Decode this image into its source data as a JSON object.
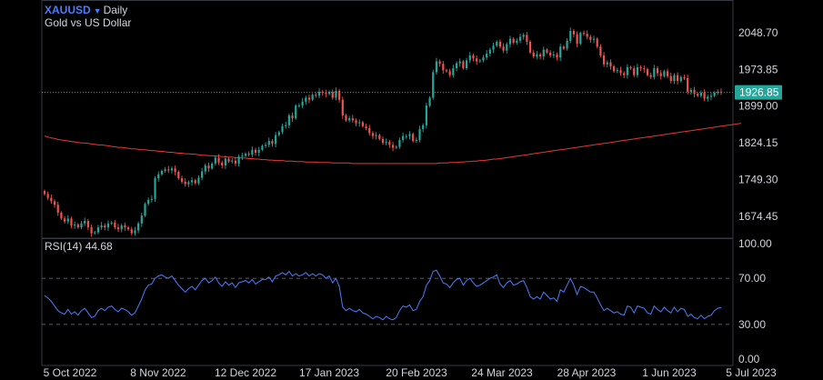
{
  "header": {
    "symbol": "XAUUSD",
    "interval": "Daily",
    "description": "Gold vs US Dollar"
  },
  "price_axis": {
    "labels": [
      "2048.70",
      "1973.85",
      "1899.00",
      "1824.15",
      "1749.30",
      "1674.45"
    ],
    "last_price": "1926.85"
  },
  "rsi_panel": {
    "label": "RSI(14)",
    "value": "44.68",
    "axis_labels": [
      "100.00",
      "70.00",
      "30.00",
      "0.00"
    ]
  },
  "time_axis": {
    "labels": [
      "5 Oct 2022",
      "8 Nov 2022",
      "12 Dec 2022",
      "17 Jan 2023",
      "20 Feb 2023",
      "24 Mar 2023",
      "28 Apr 2023",
      "1 Jun 2023",
      "5 Jul 2023"
    ]
  },
  "colors": {
    "up": "#26a69a",
    "down": "#ef5350",
    "ma": "#e53935",
    "rsi": "#4c7dff",
    "last_line": "#26a69a",
    "grid": "#2a2e39"
  },
  "chart_data": [
    {
      "type": "candlestick",
      "title": "XAUUSD Daily",
      "y_axis_ticks": [
        2048.7,
        1973.85,
        1899.0,
        1824.15,
        1749.3,
        1674.45
      ],
      "ylim": [
        1630,
        2115
      ],
      "x_tick_labels": [
        "5 Oct 2022",
        "8 Nov 2022",
        "12 Dec 2022",
        "17 Jan 2023",
        "20 Feb 2023",
        "24 Mar 2023",
        "28 Apr 2023",
        "1 Jun 2023",
        "5 Jul 2023"
      ],
      "last_price": 1926.85,
      "closes": [
        1720,
        1712,
        1705,
        1698,
        1682,
        1670,
        1664,
        1670,
        1656,
        1658,
        1652,
        1660,
        1665,
        1652,
        1640,
        1642,
        1652,
        1656,
        1652,
        1660,
        1662,
        1652,
        1648,
        1656,
        1652,
        1648,
        1640,
        1646,
        1660,
        1676,
        1700,
        1708,
        1710,
        1752,
        1760,
        1767,
        1770,
        1768,
        1772,
        1765,
        1752,
        1745,
        1740,
        1744,
        1748,
        1742,
        1753,
        1766,
        1778,
        1772,
        1782,
        1794,
        1784,
        1778,
        1792,
        1786,
        1788,
        1782,
        1796,
        1798,
        1802,
        1800,
        1810,
        1804,
        1810,
        1818,
        1820,
        1828,
        1822,
        1840,
        1846,
        1858,
        1860,
        1880,
        1874,
        1900,
        1900,
        1908,
        1916,
        1912,
        1922,
        1920,
        1928,
        1926,
        1924,
        1928,
        1916,
        1930,
        1912,
        1880,
        1870,
        1874,
        1870,
        1864,
        1866,
        1858,
        1854,
        1844,
        1838,
        1840,
        1832,
        1824,
        1826,
        1820,
        1814,
        1816,
        1830,
        1838,
        1838,
        1842,
        1828,
        1830,
        1852,
        1860,
        1900,
        1916,
        1968,
        1990,
        1985,
        1972,
        1970,
        1962,
        1976,
        1986,
        1990,
        1976,
        1992,
        2002,
        1996,
        1990,
        1992,
        1998,
        2006,
        2014,
        2022,
        2030,
        2020,
        2012,
        2025,
        2036,
        2028,
        2032,
        2040,
        2044,
        2030,
        2008,
        2000,
        2004,
        2000,
        2014,
        2008,
        2002,
        2004,
        1998,
        2020,
        2016,
        2032,
        2052,
        2045,
        2026,
        2048,
        2046,
        2040,
        2034,
        2036,
        2020,
        2002,
        1984,
        1988,
        1980,
        1970,
        1972,
        1966,
        1962,
        1978,
        1976,
        1962,
        1978,
        1976,
        1974,
        1962,
        1958,
        1976,
        1966,
        1960,
        1970,
        1960,
        1950,
        1962,
        1950,
        1958,
        1956,
        1928,
        1932,
        1924,
        1920,
        1926,
        1914,
        1918,
        1920,
        1926,
        1928,
        1926.85
      ],
      "ma_200": [
        1838,
        1836,
        1834,
        1833,
        1831,
        1830,
        1829,
        1828,
        1827,
        1826,
        1825,
        1824,
        1824,
        1823,
        1822,
        1821,
        1820,
        1820,
        1819,
        1818,
        1817,
        1816,
        1815,
        1815,
        1814,
        1813,
        1812,
        1812,
        1811,
        1810,
        1810,
        1809,
        1808,
        1808,
        1807,
        1807,
        1806,
        1805,
        1805,
        1804,
        1803,
        1803,
        1802,
        1802,
        1801,
        1801,
        1800,
        1799,
        1799,
        1798,
        1798,
        1797,
        1797,
        1796,
        1796,
        1795,
        1795,
        1794,
        1794,
        1793,
        1793,
        1792,
        1792,
        1791,
        1791,
        1790,
        1790,
        1789,
        1789,
        1788,
        1788,
        1788,
        1787,
        1787,
        1787,
        1786,
        1786,
        1786,
        1785,
        1785,
        1785,
        1785,
        1784,
        1784,
        1784,
        1784,
        1783,
        1783,
        1783,
        1783,
        1783,
        1783,
        1782,
        1782,
        1782,
        1782,
        1782,
        1782,
        1782,
        1782,
        1782,
        1782,
        1782,
        1782,
        1782,
        1782,
        1782,
        1782,
        1782,
        1782,
        1782,
        1782,
        1782,
        1782,
        1782,
        1782,
        1782,
        1782,
        1783,
        1783,
        1783,
        1784,
        1784,
        1784,
        1785,
        1785,
        1786,
        1786,
        1787,
        1787,
        1788,
        1788,
        1789,
        1790,
        1791,
        1791,
        1792,
        1793,
        1794,
        1795,
        1796,
        1797,
        1798,
        1799,
        1800,
        1801,
        1802,
        1803,
        1804,
        1805,
        1806,
        1807,
        1808,
        1809,
        1810,
        1811,
        1812,
        1813,
        1814,
        1815,
        1816,
        1817,
        1818,
        1819,
        1820,
        1821,
        1822,
        1823,
        1824,
        1825,
        1826,
        1827,
        1828,
        1829,
        1830,
        1831,
        1832,
        1833,
        1834,
        1835,
        1836,
        1837,
        1838,
        1839,
        1840,
        1841,
        1842,
        1843,
        1844,
        1845,
        1846,
        1847,
        1848,
        1849,
        1850,
        1851,
        1852,
        1853,
        1854,
        1855,
        1856,
        1857,
        1858,
        1859,
        1860,
        1861,
        1862,
        1863,
        1864
      ],
      "ma_label": "",
      "rsi_14": [
        55,
        53,
        50,
        46,
        42,
        40,
        39,
        43,
        39,
        41,
        38,
        42,
        44,
        40,
        36,
        37,
        42,
        44,
        42,
        45,
        46,
        43,
        41,
        44,
        43,
        41,
        38,
        40,
        46,
        52,
        60,
        64,
        65,
        70,
        72,
        73,
        71,
        70,
        72,
        68,
        64,
        61,
        58,
        61,
        63,
        60,
        64,
        68,
        70,
        66,
        68,
        71,
        66,
        63,
        67,
        64,
        66,
        62,
        66,
        67,
        68,
        66,
        69,
        65,
        67,
        69,
        69,
        71,
        67,
        72,
        73,
        75,
        73,
        76,
        72,
        74,
        72,
        73,
        75,
        72,
        74,
        72,
        74,
        73,
        70,
        72,
        66,
        70,
        63,
        45,
        42,
        44,
        42,
        41,
        43,
        40,
        39,
        37,
        35,
        37,
        36,
        34,
        37,
        35,
        34,
        36,
        42,
        46,
        45,
        47,
        42,
        43,
        50,
        54,
        64,
        68,
        76,
        77,
        72,
        66,
        65,
        62,
        66,
        69,
        70,
        64,
        68,
        70,
        66,
        63,
        64,
        66,
        68,
        70,
        71,
        73,
        65,
        62,
        66,
        68,
        64,
        65,
        67,
        68,
        62,
        54,
        52,
        54,
        52,
        58,
        55,
        52,
        53,
        50,
        60,
        58,
        64,
        70,
        64,
        56,
        63,
        62,
        60,
        58,
        58,
        53,
        47,
        42,
        44,
        42,
        40,
        41,
        39,
        38,
        46,
        45,
        40,
        46,
        45,
        44,
        40,
        39,
        46,
        43,
        41,
        45,
        42,
        40,
        45,
        41,
        44,
        43,
        37,
        39,
        36,
        35,
        38,
        35,
        37,
        38,
        42,
        44,
        44.68
      ],
      "rsi_axis_ticks": [
        100,
        70,
        30,
        0
      ],
      "rsi_ylim": [
        0,
        100
      ]
    }
  ]
}
